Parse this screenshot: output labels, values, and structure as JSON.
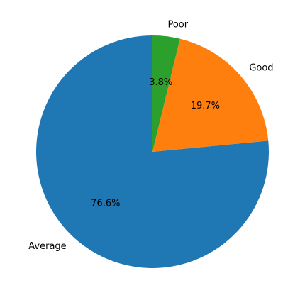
{
  "chart_data": {
    "type": "pie",
    "title": "",
    "start_angle_deg": 90,
    "direction": "counterclockwise",
    "slices": [
      {
        "label": "Average",
        "value": 76.6,
        "pct_label": "76.6%",
        "color": "#1f77b4"
      },
      {
        "label": "Good",
        "value": 19.7,
        "pct_label": "19.7%",
        "color": "#ff7f0e"
      },
      {
        "label": "Poor",
        "value": 3.8,
        "pct_label": "3.8%",
        "color": "#2ca02c"
      }
    ]
  }
}
